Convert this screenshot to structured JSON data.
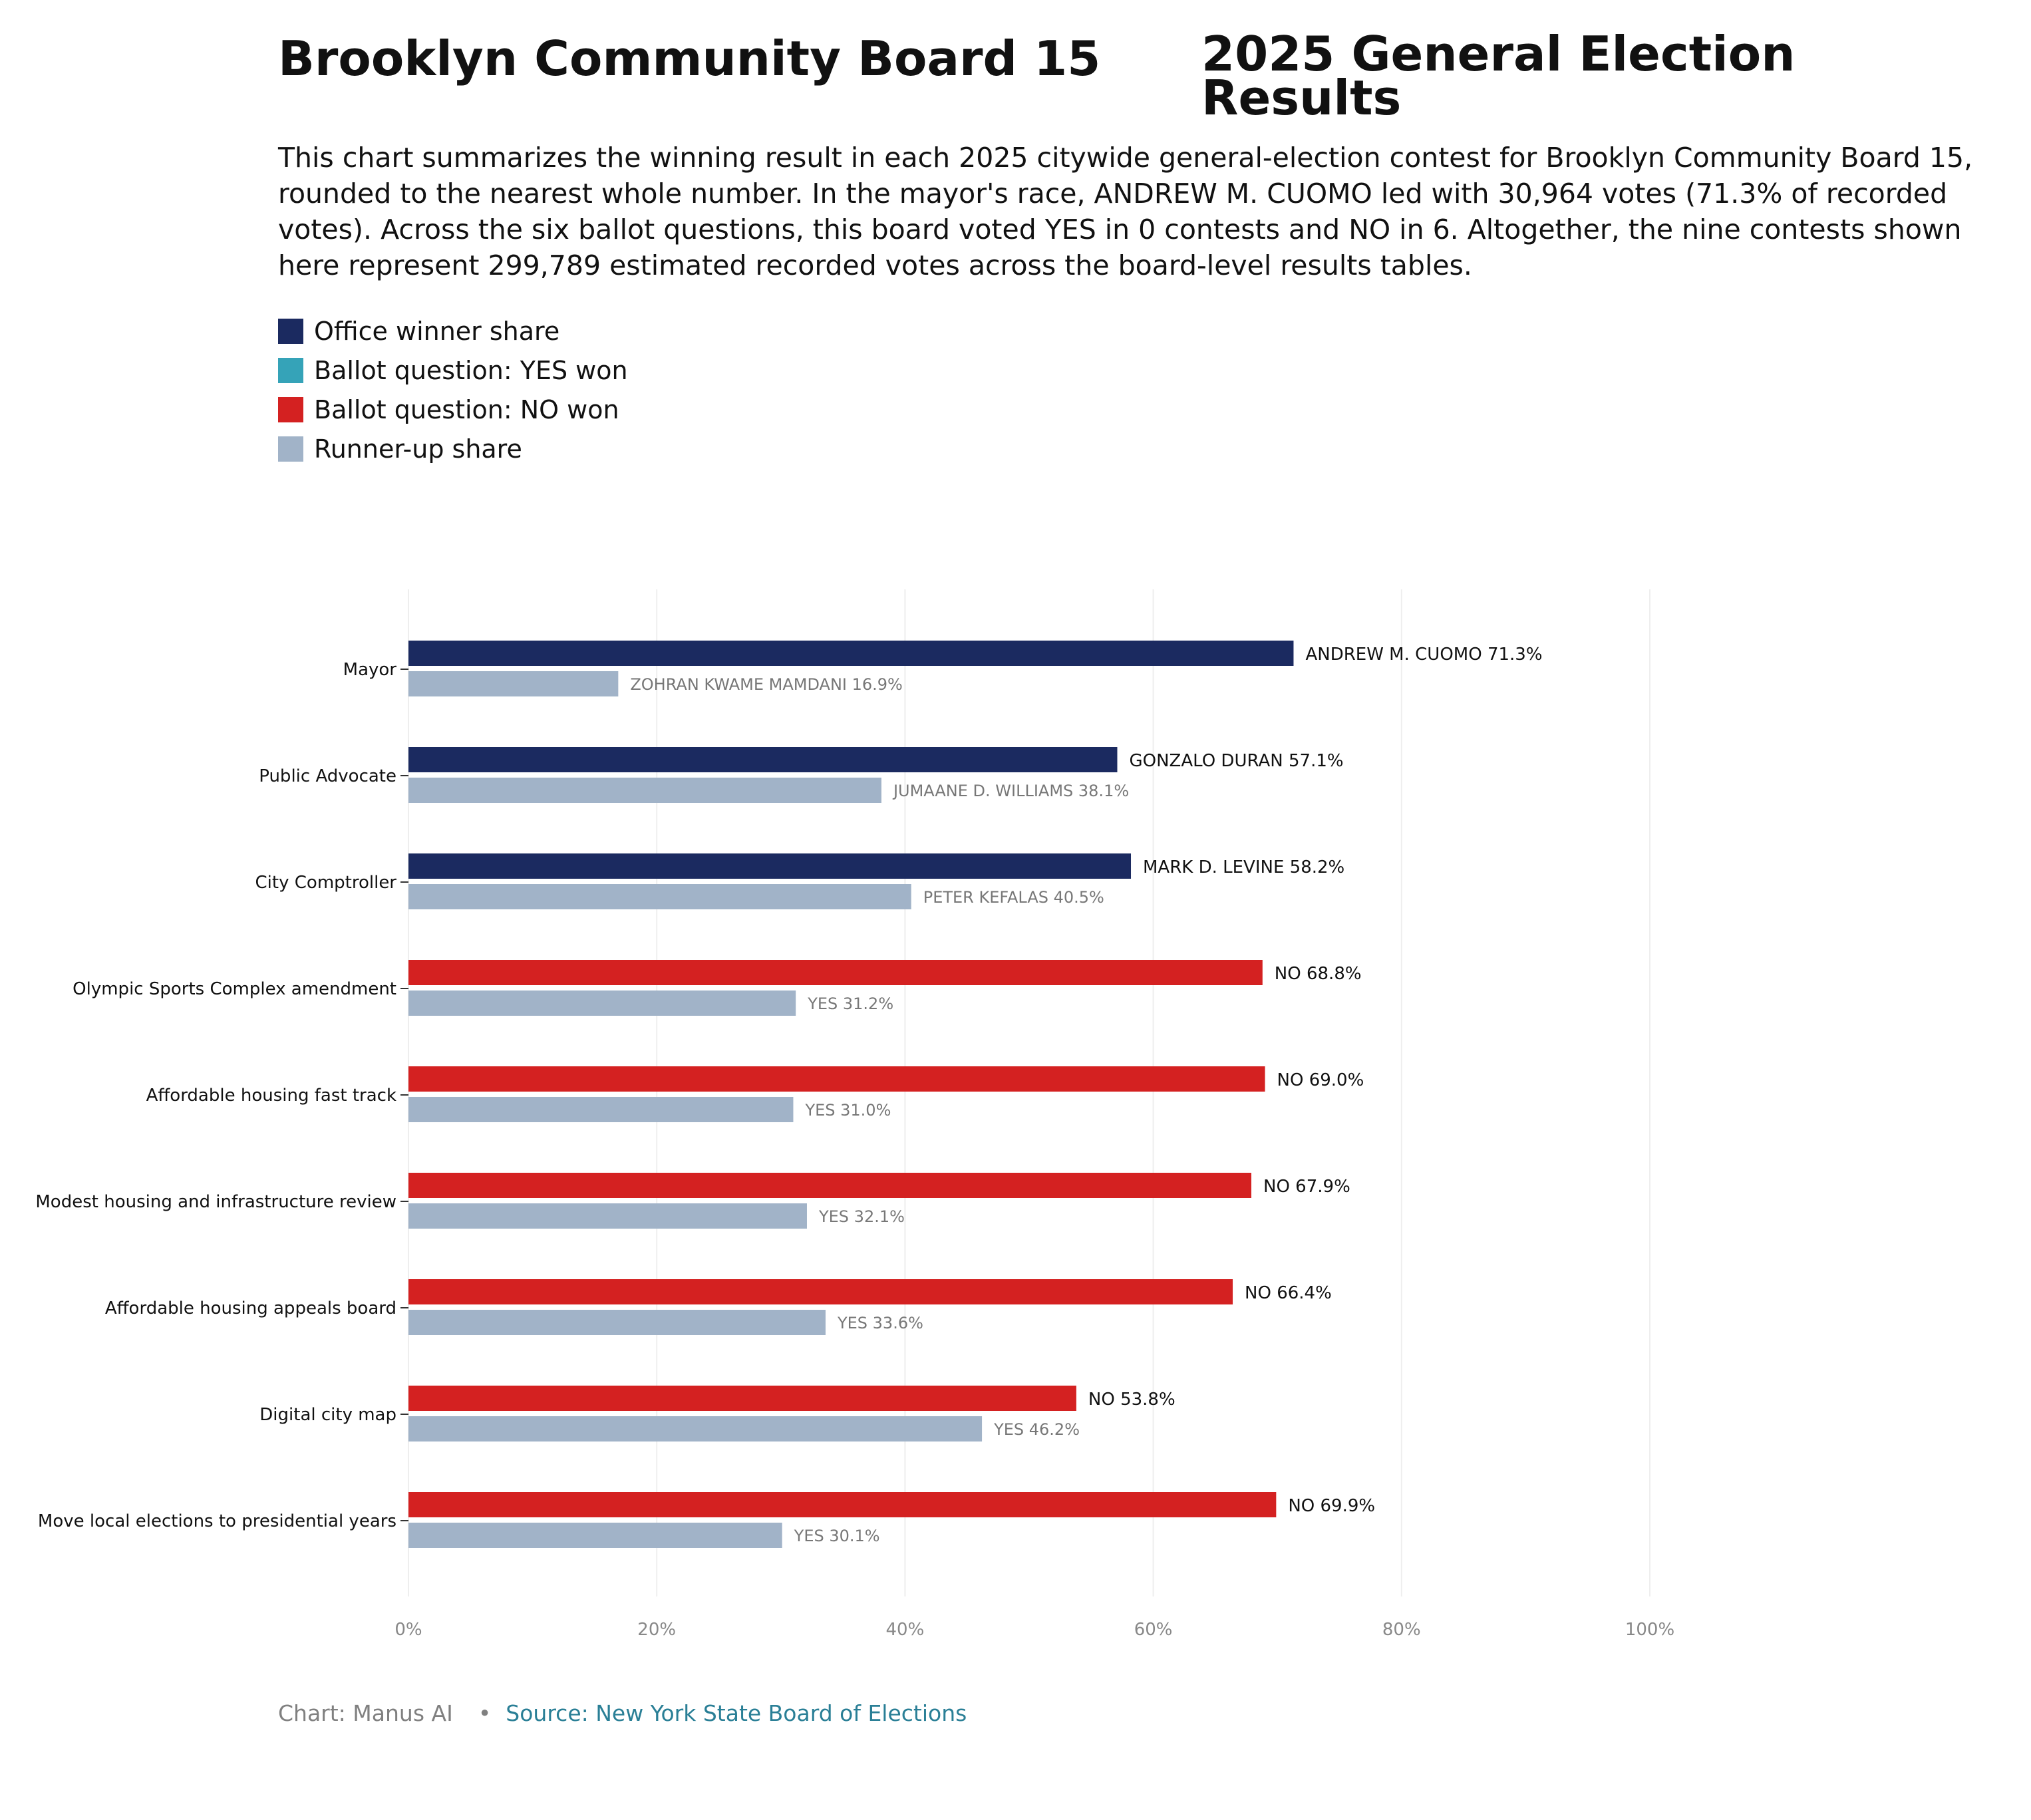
{
  "title_part1": "Brooklyn Community Board 15",
  "title_part2": "2025 General Election Results",
  "description": "This chart summarizes the winning result in each 2025 citywide general-election contest for Brooklyn Community Board 15, rounded to the nearest whole number. In the mayor's race, ANDREW M. CUOMO led with 30,964 votes (71.3% of recorded votes). Across the six ballot questions, this board voted YES in 0 contests and NO in 6. Altogether, the nine contests shown here represent 299,789 estimated recorded votes across the board-level results tables.",
  "legend": [
    {
      "label": "Office winner share",
      "color": "#1b2a60"
    },
    {
      "label": "Ballot question: YES won",
      "color": "#35a3b8"
    },
    {
      "label": "Ballot question: NO won",
      "color": "#d42121"
    },
    {
      "label": "Runner-up share",
      "color": "#a1b3c8"
    }
  ],
  "colors": {
    "office_winner": "#1b2a60",
    "yes_won": "#35a3b8",
    "no_won": "#d42121",
    "runner_up": "#a1b3c8",
    "grid": "#eeeeee"
  },
  "chart_data": {
    "type": "bar",
    "orientation": "horizontal",
    "xlim": [
      0,
      100
    ],
    "x_ticks": [
      "0%",
      "20%",
      "40%",
      "60%",
      "80%",
      "100%"
    ],
    "x_tick_values": [
      0,
      20,
      40,
      60,
      80,
      100
    ],
    "grid": true,
    "contests": [
      {
        "category": "Mayor",
        "kind": "office",
        "winner_label": "ANDREW M. CUOMO 71.3%",
        "winner_value": 71.3,
        "runner_label": "ZOHRAN KWAME MAMDANI 16.9%",
        "runner_value": 16.9
      },
      {
        "category": "Public Advocate",
        "kind": "office",
        "winner_label": "GONZALO DURAN 57.1%",
        "winner_value": 57.1,
        "runner_label": "JUMAANE D. WILLIAMS 38.1%",
        "runner_value": 38.1
      },
      {
        "category": "City Comptroller",
        "kind": "office",
        "winner_label": "MARK D. LEVINE 58.2%",
        "winner_value": 58.2,
        "runner_label": "PETER KEFALAS 40.5%",
        "runner_value": 40.5
      },
      {
        "category": "Olympic Sports Complex amendment",
        "kind": "no",
        "winner_label": "NO 68.8%",
        "winner_value": 68.8,
        "runner_label": "YES 31.2%",
        "runner_value": 31.2
      },
      {
        "category": "Affordable housing fast track",
        "kind": "no",
        "winner_label": "NO 69.0%",
        "winner_value": 69.0,
        "runner_label": "YES 31.0%",
        "runner_value": 31.0
      },
      {
        "category": "Modest housing and infrastructure review",
        "kind": "no",
        "winner_label": "NO 67.9%",
        "winner_value": 67.9,
        "runner_label": "YES 32.1%",
        "runner_value": 32.1
      },
      {
        "category": "Affordable housing appeals board",
        "kind": "no",
        "winner_label": "NO 66.4%",
        "winner_value": 66.4,
        "runner_label": "YES 33.6%",
        "runner_value": 33.6
      },
      {
        "category": "Digital city map",
        "kind": "no",
        "winner_label": "NO 53.8%",
        "winner_value": 53.8,
        "runner_label": "YES 46.2%",
        "runner_value": 46.2
      },
      {
        "category": "Move local elections to presidential years",
        "kind": "no",
        "winner_label": "NO 69.9%",
        "winner_value": 69.9,
        "runner_label": "YES 30.1%",
        "runner_value": 30.1
      }
    ]
  },
  "footer": {
    "credit": "Chart: Manus AI",
    "separator": "•",
    "source": "Source: New York State Board of Elections"
  }
}
